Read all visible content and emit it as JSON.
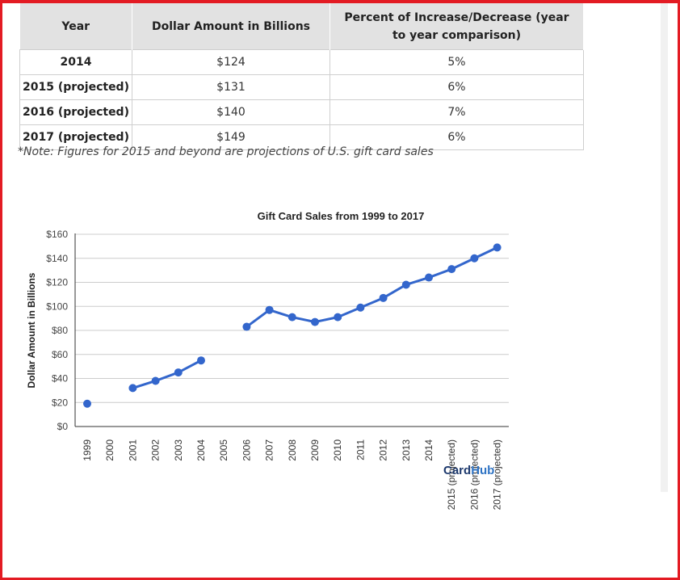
{
  "table": {
    "headers": [
      "Year",
      "Dollar Amount in Billions",
      "Percent of Increase/Decrease (year to year comparison)"
    ],
    "rows": [
      [
        "2014",
        "$124",
        "5%"
      ],
      [
        "2015 (projected)",
        "$131",
        "6%"
      ],
      [
        "2016 (projected)",
        "$140",
        "7%"
      ],
      [
        "2017 (projected)",
        "$149",
        "6%"
      ]
    ]
  },
  "note": "*Note: Figures for 2015 and beyond are projections of U.S. gift card sales",
  "logo": {
    "part1": "Card",
    "part2": "Hub"
  },
  "colors": {
    "line": "#3366cc",
    "header_bg": "#e2e2e2",
    "frame": "#e31b23"
  },
  "chart_data": {
    "type": "line",
    "title": "Gift Card Sales from 1999 to 2017",
    "xlabel": "",
    "ylabel": "Dollar Amount in Billions",
    "categories": [
      "1999",
      "2000",
      "2001",
      "2002",
      "2003",
      "2004",
      "2005",
      "2006",
      "2007",
      "2008",
      "2009",
      "2010",
      "2011",
      "2012",
      "2013",
      "2014",
      "2015 (projected)",
      "2016 (projected)",
      "2017 (projected)"
    ],
    "series": [
      {
        "values": [
          19,
          null,
          32,
          38,
          45,
          55,
          null,
          83,
          97,
          91,
          87,
          91,
          99,
          107,
          118,
          124,
          131,
          140,
          149
        ]
      }
    ],
    "ylim": [
      0,
      160
    ],
    "yticks": [
      0,
      20,
      40,
      60,
      80,
      100,
      120,
      140,
      160
    ],
    "ytick_labels": [
      "$0",
      "$20",
      "$40",
      "$60",
      "$80",
      "$100",
      "$120",
      "$140",
      "$160"
    ],
    "grid": true,
    "legend": "none"
  }
}
